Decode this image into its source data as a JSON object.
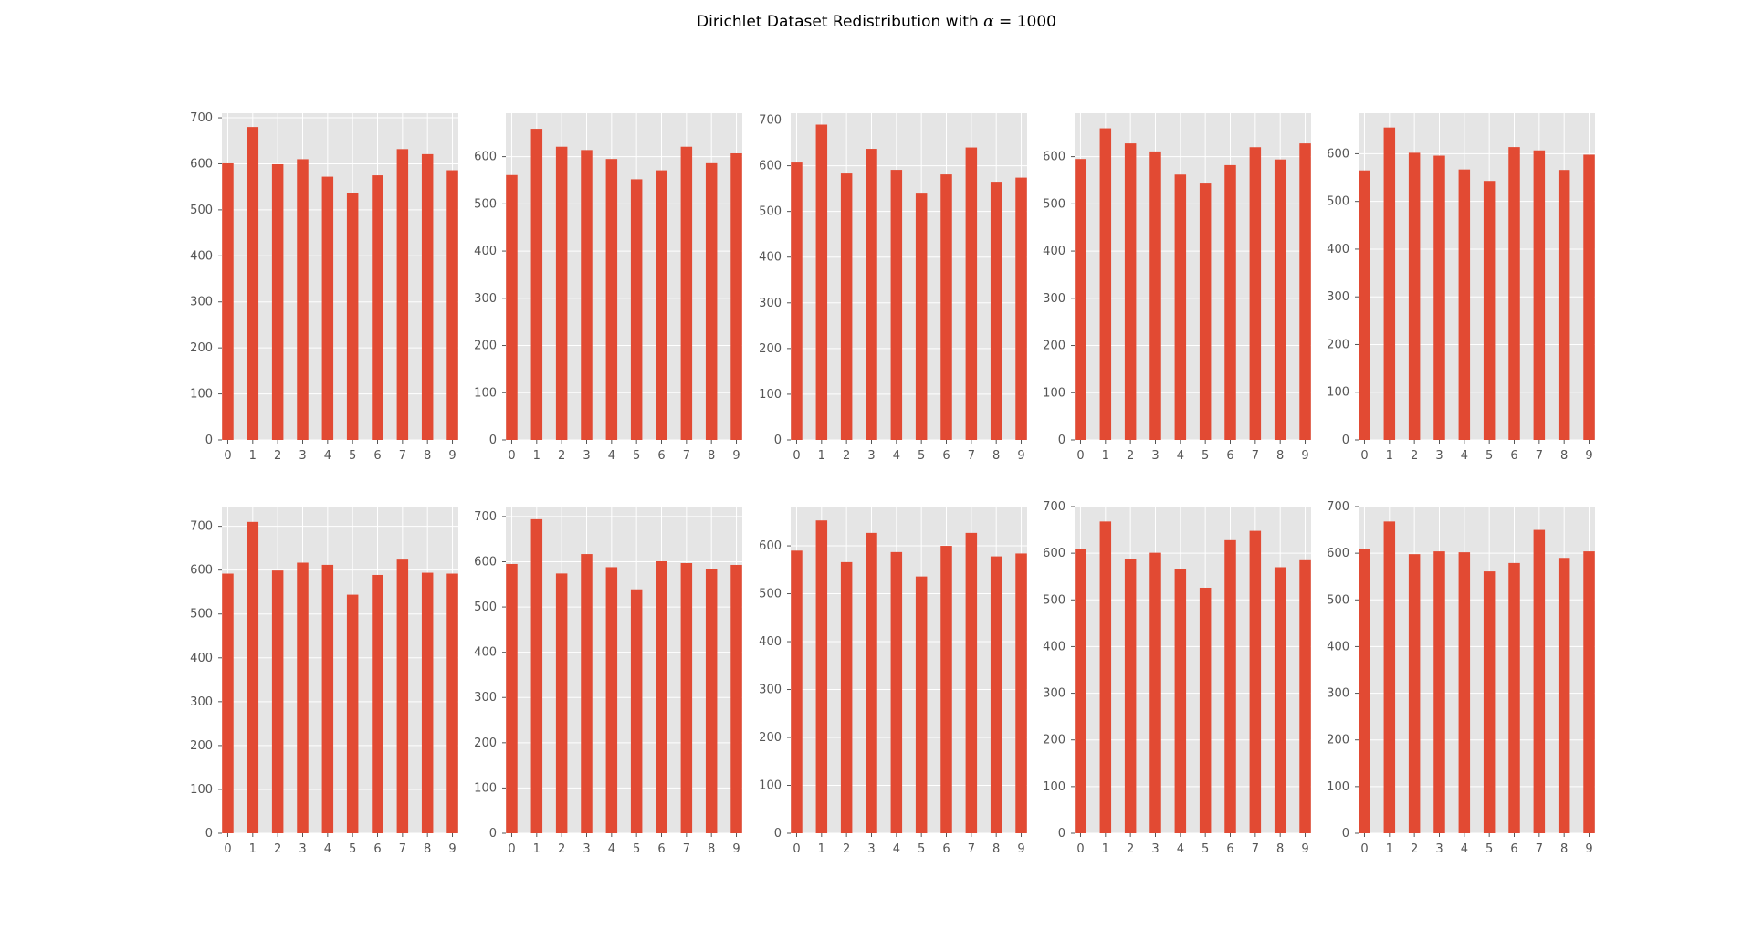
{
  "figure": {
    "title_prefix": "Dirichlet Dataset Redistribution with ",
    "title_symbol": "α",
    "title_suffix": " = 1000"
  },
  "style": {
    "bar_color": "#E24A33",
    "axes_facecolor": "#E5E5E5",
    "grid_color": "#FFFFFF",
    "tick_label_color": "#555555"
  },
  "chart_data": [
    {
      "type": "bar",
      "categories": [
        "0",
        "1",
        "2",
        "3",
        "4",
        "5",
        "6",
        "7",
        "8",
        "9"
      ],
      "values": [
        601,
        680,
        599,
        610,
        572,
        537,
        575,
        632,
        621,
        586
      ],
      "ylim": [
        0,
        710
      ],
      "yticks": [
        0,
        100,
        200,
        300,
        400,
        500,
        600,
        700
      ],
      "grid": true
    },
    {
      "type": "bar",
      "categories": [
        "0",
        "1",
        "2",
        "3",
        "4",
        "5",
        "6",
        "7",
        "8",
        "9"
      ],
      "values": [
        561,
        659,
        621,
        614,
        595,
        552,
        571,
        621,
        586,
        607
      ],
      "ylim": [
        0,
        692
      ],
      "yticks": [
        0,
        100,
        200,
        300,
        400,
        500,
        600
      ],
      "grid": true
    },
    {
      "type": "bar",
      "categories": [
        "0",
        "1",
        "2",
        "3",
        "4",
        "5",
        "6",
        "7",
        "8",
        "9"
      ],
      "values": [
        607,
        690,
        583,
        637,
        591,
        539,
        581,
        640,
        565,
        574
      ],
      "ylim": [
        0,
        715
      ],
      "yticks": [
        0,
        100,
        200,
        300,
        400,
        500,
        600,
        700
      ],
      "grid": true
    },
    {
      "type": "bar",
      "categories": [
        "0",
        "1",
        "2",
        "3",
        "4",
        "5",
        "6",
        "7",
        "8",
        "9"
      ],
      "values": [
        595,
        660,
        628,
        611,
        562,
        543,
        582,
        620,
        594,
        628
      ],
      "ylim": [
        0,
        692
      ],
      "yticks": [
        0,
        100,
        200,
        300,
        400,
        500,
        600
      ],
      "grid": true
    },
    {
      "type": "bar",
      "categories": [
        "0",
        "1",
        "2",
        "3",
        "4",
        "5",
        "6",
        "7",
        "8",
        "9"
      ],
      "values": [
        565,
        655,
        602,
        596,
        567,
        543,
        614,
        607,
        566,
        598
      ],
      "ylim": [
        0,
        685
      ],
      "yticks": [
        0,
        100,
        200,
        300,
        400,
        500,
        600
      ],
      "grid": true
    },
    {
      "type": "bar",
      "categories": [
        "0",
        "1",
        "2",
        "3",
        "4",
        "5",
        "6",
        "7",
        "8",
        "9"
      ],
      "values": [
        592,
        710,
        599,
        617,
        612,
        544,
        589,
        624,
        594,
        592
      ],
      "ylim": [
        0,
        745
      ],
      "yticks": [
        0,
        100,
        200,
        300,
        400,
        500,
        600,
        700
      ],
      "grid": true
    },
    {
      "type": "bar",
      "categories": [
        "0",
        "1",
        "2",
        "3",
        "4",
        "5",
        "6",
        "7",
        "8",
        "9"
      ],
      "values": [
        595,
        694,
        574,
        617,
        588,
        539,
        601,
        597,
        584,
        593
      ],
      "ylim": [
        0,
        722
      ],
      "yticks": [
        0,
        100,
        200,
        300,
        400,
        500,
        600,
        700
      ],
      "grid": true
    },
    {
      "type": "bar",
      "categories": [
        "0",
        "1",
        "2",
        "3",
        "4",
        "5",
        "6",
        "7",
        "8",
        "9"
      ],
      "values": [
        590,
        653,
        566,
        627,
        587,
        536,
        600,
        627,
        578,
        584
      ],
      "ylim": [
        0,
        682
      ],
      "yticks": [
        0,
        100,
        200,
        300,
        400,
        500,
        600
      ],
      "grid": true
    },
    {
      "type": "bar",
      "categories": [
        "0",
        "1",
        "2",
        "3",
        "4",
        "5",
        "6",
        "7",
        "8",
        "9"
      ],
      "values": [
        609,
        668,
        588,
        601,
        567,
        526,
        628,
        648,
        570,
        585
      ],
      "ylim": [
        0,
        700
      ],
      "yticks": [
        0,
        100,
        200,
        300,
        400,
        500,
        600,
        700
      ],
      "grid": true
    },
    {
      "type": "bar",
      "categories": [
        "0",
        "1",
        "2",
        "3",
        "4",
        "5",
        "6",
        "7",
        "8",
        "9"
      ],
      "values": [
        609,
        668,
        598,
        604,
        602,
        561,
        579,
        650,
        590,
        604
      ],
      "ylim": [
        0,
        700
      ],
      "yticks": [
        0,
        100,
        200,
        300,
        400,
        500,
        600,
        700
      ],
      "grid": true
    }
  ]
}
